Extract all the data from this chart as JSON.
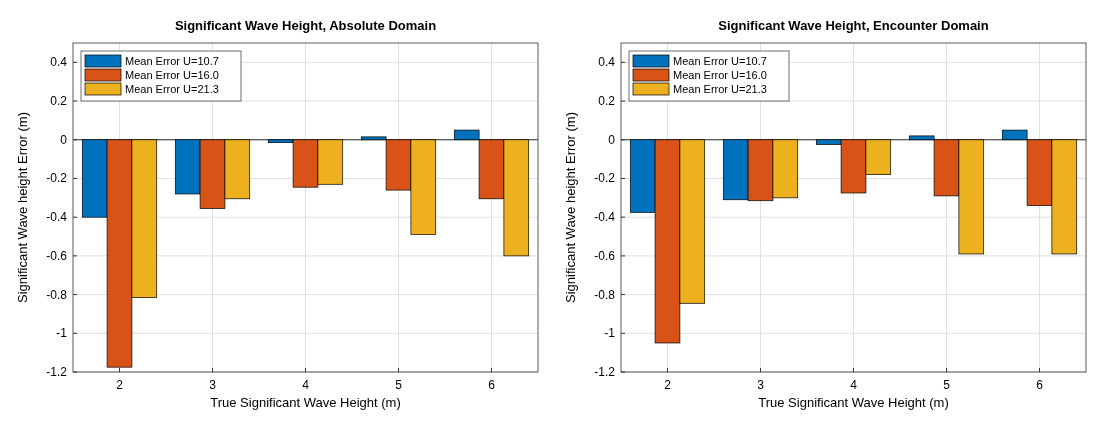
{
  "chart_data": [
    {
      "type": "bar",
      "title": "Significant Wave Height, Absolute Domain",
      "xlabel": "True Significant Wave Height (m)",
      "ylabel": "Significant Wave height Error (m)",
      "categories": [
        "2",
        "3",
        "4",
        "5",
        "6"
      ],
      "series": [
        {
          "name": "Mean Error U=10.7",
          "color": "#0072bd",
          "values": [
            -0.4,
            -0.28,
            -0.015,
            0.015,
            0.05
          ]
        },
        {
          "name": "Mean Error U=16.0",
          "color": "#d95319",
          "values": [
            -1.175,
            -0.355,
            -0.245,
            -0.26,
            -0.305
          ]
        },
        {
          "name": "Mean Error U=21.3",
          "color": "#edb120",
          "values": [
            -0.815,
            -0.305,
            -0.23,
            -0.49,
            -0.6
          ]
        }
      ],
      "ylim": [
        -1.2,
        0.5
      ],
      "yticks": [
        -1.2,
        -1,
        -0.8,
        -0.6,
        -0.4,
        -0.2,
        0,
        0.2,
        0.4
      ],
      "grid": true,
      "legend": "top left"
    },
    {
      "type": "bar",
      "title": "Significant Wave Height, Encounter Domain",
      "xlabel": "True Significant Wave Height (m)",
      "ylabel": "Significant Wave height Error (m)",
      "categories": [
        "2",
        "3",
        "4",
        "5",
        "6"
      ],
      "series": [
        {
          "name": "Mean Error U=10.7",
          "color": "#0072bd",
          "values": [
            -0.375,
            -0.31,
            -0.025,
            0.02,
            0.05
          ]
        },
        {
          "name": "Mean Error U=16.0",
          "color": "#d95319",
          "values": [
            -1.05,
            -0.315,
            -0.275,
            -0.29,
            -0.34
          ]
        },
        {
          "name": "Mean Error U=21.3",
          "color": "#edb120",
          "values": [
            -0.845,
            -0.3,
            -0.18,
            -0.59,
            -0.59
          ]
        }
      ],
      "ylim": [
        -1.2,
        0.5
      ],
      "yticks": [
        -1.2,
        -1,
        -0.8,
        -0.6,
        -0.4,
        -0.2,
        0,
        0.2,
        0.4
      ],
      "grid": true,
      "legend": "top left"
    }
  ]
}
